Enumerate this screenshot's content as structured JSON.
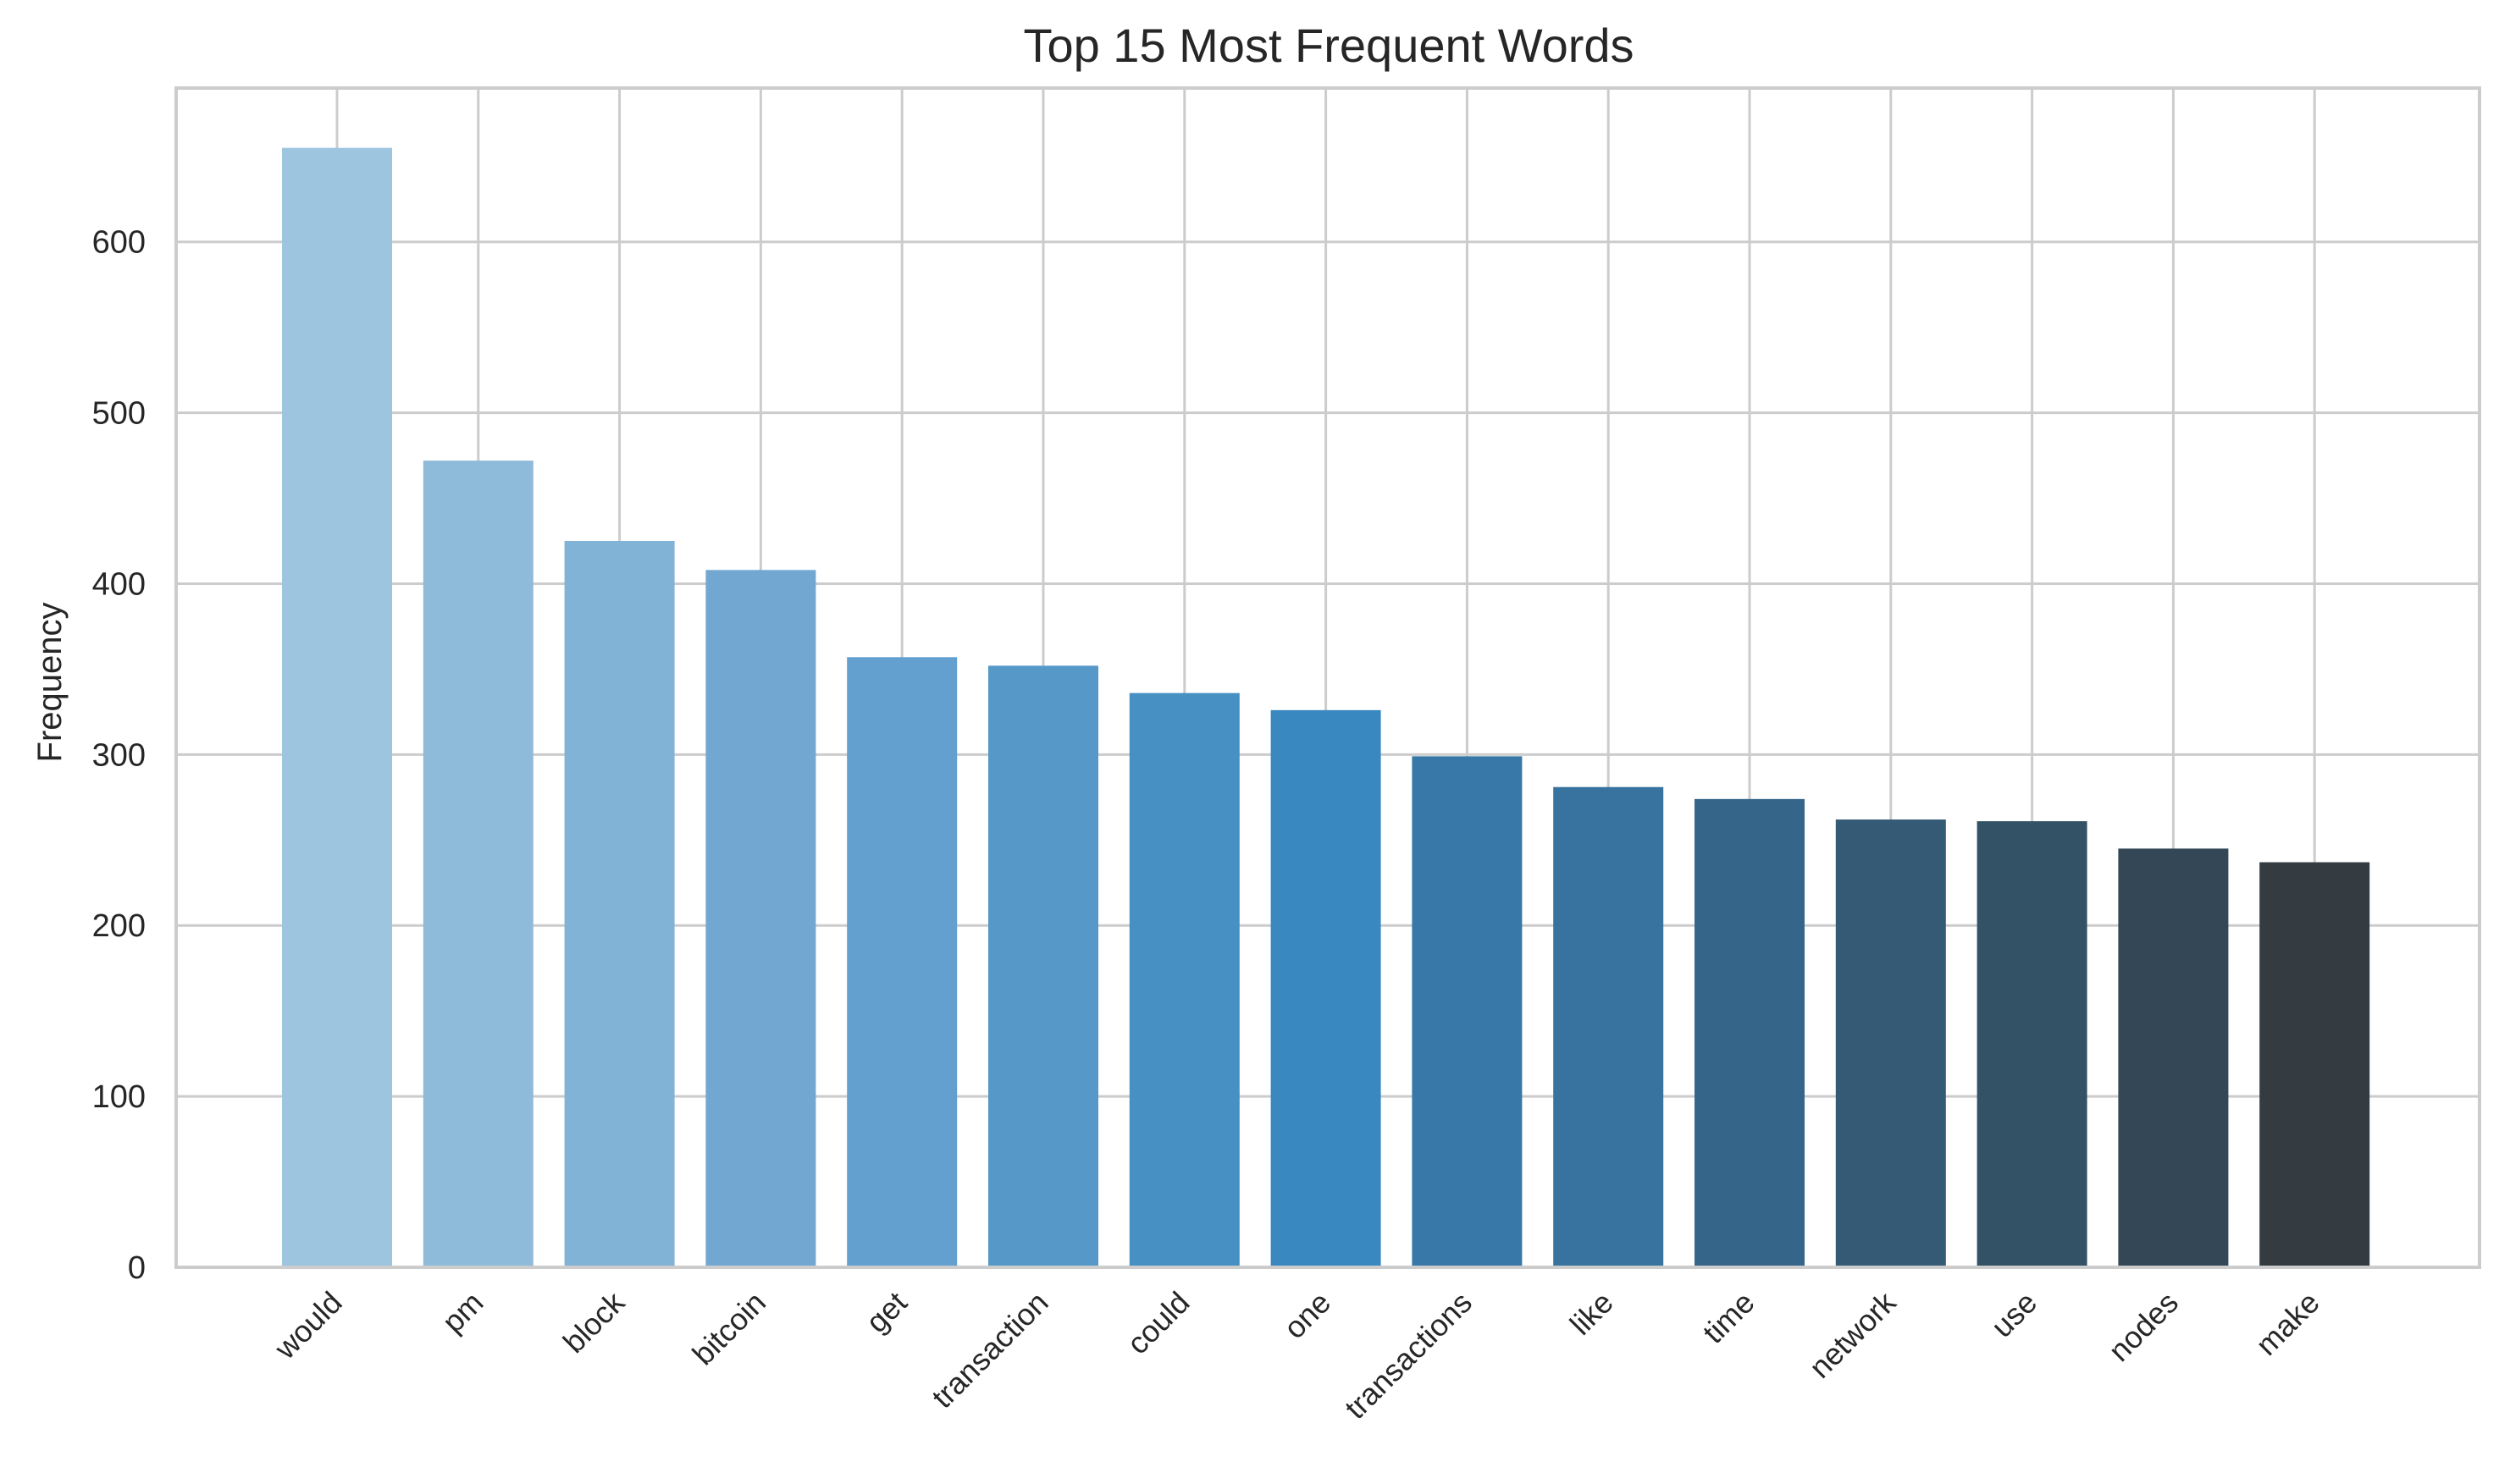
{
  "chart_data": {
    "type": "bar",
    "title": "Top 15 Most Frequent Words",
    "xlabel": "",
    "ylabel": "Frequency",
    "categories": [
      "would",
      "pm",
      "block",
      "bitcoin",
      "get",
      "transaction",
      "could",
      "one",
      "transactions",
      "like",
      "time",
      "network",
      "use",
      "nodes",
      "make"
    ],
    "values": [
      655,
      472,
      425,
      408,
      357,
      352,
      336,
      326,
      299,
      281,
      274,
      262,
      261,
      245,
      237
    ],
    "bar_colors": [
      "#9ec5df",
      "#8fbbda",
      "#81b3d7",
      "#71a7d1",
      "#63a0cf",
      "#5699c9",
      "#4690c4",
      "#3a88c0",
      "#3878a8",
      "#38739f",
      "#35668a",
      "#345a75",
      "#345266",
      "#344756",
      "#343c42"
    ],
    "ylim": [
      0,
      690
    ],
    "yticks": [
      0,
      100,
      200,
      300,
      400,
      500,
      600
    ],
    "grid": true,
    "style": {
      "grid_color": "#cccccc",
      "spine_color": "#cccccc",
      "text_color": "#262626",
      "background": "#ffffff"
    }
  }
}
